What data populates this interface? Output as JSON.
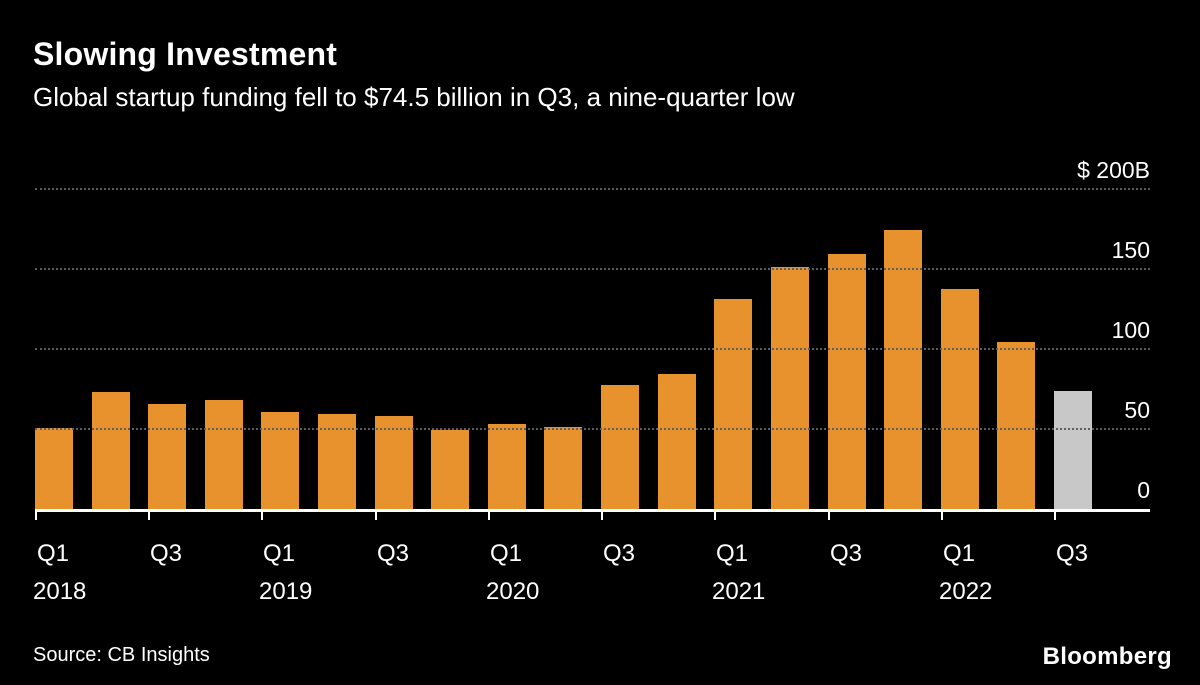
{
  "header": {
    "title": "Slowing Investment",
    "subtitle": "Global startup funding fell to $74.5 billion in Q3, a nine-quarter low"
  },
  "chart_data": {
    "type": "bar",
    "title": "Slowing Investment",
    "subtitle": "Global startup funding fell to $74.5 billion in Q3, a nine-quarter low",
    "unit": "billions USD",
    "categories": [
      "Q1 2018",
      "Q2 2018",
      "Q3 2018",
      "Q4 2018",
      "Q1 2019",
      "Q2 2019",
      "Q3 2019",
      "Q4 2019",
      "Q1 2020",
      "Q2 2020",
      "Q3 2020",
      "Q4 2020",
      "Q1 2021",
      "Q2 2021",
      "Q3 2021",
      "Q4 2021",
      "Q1 2022",
      "Q2 2022",
      "Q3 2022"
    ],
    "values": [
      51,
      74,
      66,
      69,
      61,
      60,
      59,
      50,
      54,
      52,
      78,
      85,
      132,
      152,
      160,
      175,
      138,
      105,
      74.5
    ],
    "colors": {
      "bar": "#E8922E",
      "highlight_last": "#C8C8C8",
      "background": "#000000",
      "gridline": "#5E5E5E",
      "axis": "#FFFFFF",
      "text": "#FFFFFF"
    },
    "ylim": [
      0,
      200
    ],
    "y_ticks": [
      {
        "value": 200,
        "label": "$ 200B"
      },
      {
        "value": 150,
        "label": "150"
      },
      {
        "value": 100,
        "label": "100"
      },
      {
        "value": 50,
        "label": "50"
      },
      {
        "value": 0,
        "label": "0"
      }
    ],
    "x_ticks": [
      {
        "index": 0,
        "label": "Q1",
        "year": "2018"
      },
      {
        "index": 2,
        "label": "Q3"
      },
      {
        "index": 4,
        "label": "Q1",
        "year": "2019"
      },
      {
        "index": 6,
        "label": "Q3"
      },
      {
        "index": 8,
        "label": "Q1",
        "year": "2020"
      },
      {
        "index": 10,
        "label": "Q3"
      },
      {
        "index": 12,
        "label": "Q1",
        "year": "2021"
      },
      {
        "index": 14,
        "label": "Q3"
      },
      {
        "index": 16,
        "label": "Q1",
        "year": "2022"
      },
      {
        "index": 18,
        "label": "Q3"
      }
    ],
    "grid": "horizontal-dotted",
    "legend": "none",
    "highlighted_bar": "Q3 2022"
  },
  "footer": {
    "source": "Source: CB Insights",
    "brand": "Bloomberg"
  }
}
